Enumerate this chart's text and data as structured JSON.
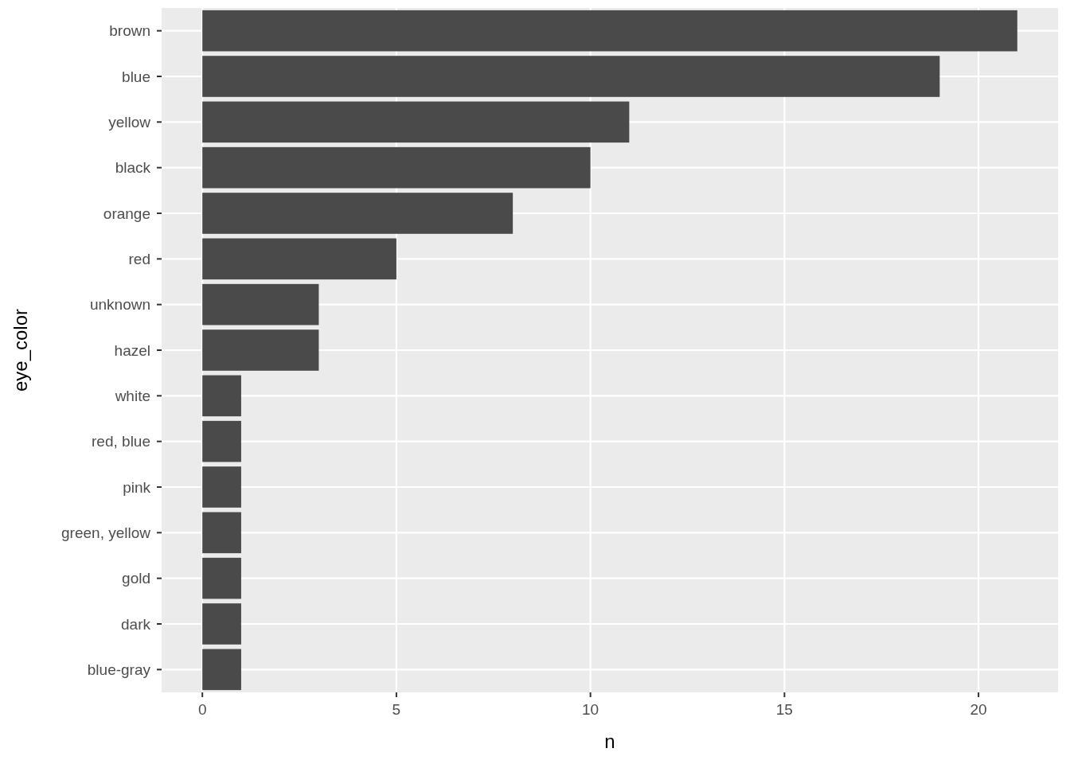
{
  "chart_data": {
    "type": "bar",
    "orientation": "horizontal",
    "xlabel": "n",
    "ylabel": "eye_color",
    "categories": [
      "brown",
      "blue",
      "yellow",
      "black",
      "orange",
      "red",
      "unknown",
      "hazel",
      "white",
      "red, blue",
      "pink",
      "green, yellow",
      "gold",
      "dark",
      "blue-gray"
    ],
    "values": [
      21,
      19,
      11,
      10,
      8,
      5,
      3,
      3,
      1,
      1,
      1,
      1,
      1,
      1,
      1
    ],
    "color": "#4a4a4a",
    "xlim": [
      -1.05,
      22.05
    ],
    "xticks": [
      0,
      5,
      10,
      15,
      20
    ],
    "grid": true
  }
}
